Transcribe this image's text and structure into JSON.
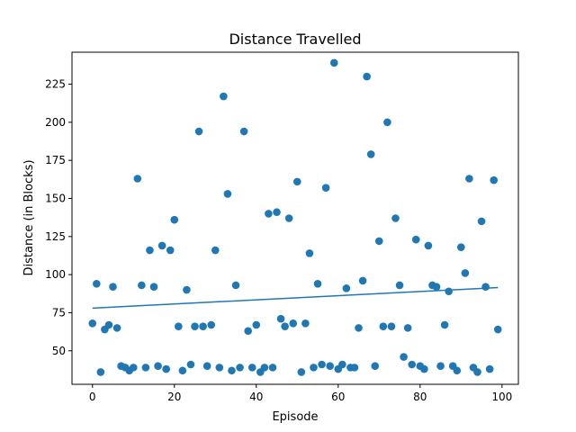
{
  "chart_data": {
    "type": "scatter",
    "title": "Distance Travelled",
    "xlabel": "Episode",
    "ylabel": "Distance (in Blocks)",
    "xlim": [
      -5,
      104
    ],
    "ylim": [
      28,
      246
    ],
    "xticks": [
      0,
      20,
      40,
      60,
      80,
      100
    ],
    "yticks": [
      50,
      75,
      100,
      125,
      150,
      175,
      200,
      225
    ],
    "grid": false,
    "series": [
      {
        "kind": "scatter",
        "color": "#1f77b4",
        "points": [
          [
            0,
            68
          ],
          [
            1,
            94
          ],
          [
            2,
            36
          ],
          [
            3,
            64
          ],
          [
            4,
            67
          ],
          [
            5,
            92
          ],
          [
            6,
            65
          ],
          [
            7,
            40
          ],
          [
            8,
            39
          ],
          [
            9,
            37
          ],
          [
            10,
            39
          ],
          [
            11,
            163
          ],
          [
            12,
            93
          ],
          [
            13,
            39
          ],
          [
            14,
            116
          ],
          [
            15,
            92
          ],
          [
            16,
            40
          ],
          [
            17,
            119
          ],
          [
            18,
            38
          ],
          [
            19,
            116
          ],
          [
            20,
            136
          ],
          [
            21,
            66
          ],
          [
            22,
            37
          ],
          [
            23,
            90
          ],
          [
            24,
            41
          ],
          [
            25,
            66
          ],
          [
            26,
            194
          ],
          [
            27,
            66
          ],
          [
            28,
            40
          ],
          [
            29,
            67
          ],
          [
            30,
            116
          ],
          [
            31,
            39
          ],
          [
            32,
            217
          ],
          [
            33,
            153
          ],
          [
            34,
            37
          ],
          [
            35,
            93
          ],
          [
            36,
            39
          ],
          [
            37,
            194
          ],
          [
            38,
            63
          ],
          [
            39,
            39
          ],
          [
            40,
            67
          ],
          [
            41,
            36
          ],
          [
            42,
            39
          ],
          [
            43,
            140
          ],
          [
            44,
            39
          ],
          [
            45,
            141
          ],
          [
            46,
            71
          ],
          [
            47,
            66
          ],
          [
            48,
            137
          ],
          [
            49,
            68
          ],
          [
            50,
            161
          ],
          [
            51,
            36
          ],
          [
            52,
            68
          ],
          [
            53,
            114
          ],
          [
            54,
            39
          ],
          [
            55,
            94
          ],
          [
            56,
            41
          ],
          [
            57,
            157
          ],
          [
            58,
            40
          ],
          [
            59,
            239
          ],
          [
            60,
            38
          ],
          [
            61,
            41
          ],
          [
            62,
            91
          ],
          [
            63,
            39
          ],
          [
            64,
            39
          ],
          [
            65,
            65
          ],
          [
            66,
            96
          ],
          [
            67,
            230
          ],
          [
            68,
            179
          ],
          [
            69,
            40
          ],
          [
            70,
            122
          ],
          [
            71,
            66
          ],
          [
            72,
            200
          ],
          [
            73,
            66
          ],
          [
            74,
            137
          ],
          [
            75,
            93
          ],
          [
            76,
            46
          ],
          [
            77,
            65
          ],
          [
            78,
            41
          ],
          [
            79,
            123
          ],
          [
            80,
            40
          ],
          [
            81,
            38
          ],
          [
            82,
            119
          ],
          [
            83,
            93
          ],
          [
            84,
            92
          ],
          [
            85,
            40
          ],
          [
            86,
            67
          ],
          [
            87,
            89
          ],
          [
            88,
            40
          ],
          [
            89,
            37
          ],
          [
            90,
            118
          ],
          [
            91,
            101
          ],
          [
            92,
            163
          ],
          [
            93,
            39
          ],
          [
            94,
            36
          ],
          [
            95,
            135
          ],
          [
            96,
            92
          ],
          [
            97,
            38
          ],
          [
            98,
            162
          ],
          [
            99,
            64
          ]
        ]
      },
      {
        "kind": "line",
        "color": "#1f77b4",
        "x": [
          0,
          99
        ],
        "values": [
          78,
          91.5
        ]
      }
    ]
  }
}
